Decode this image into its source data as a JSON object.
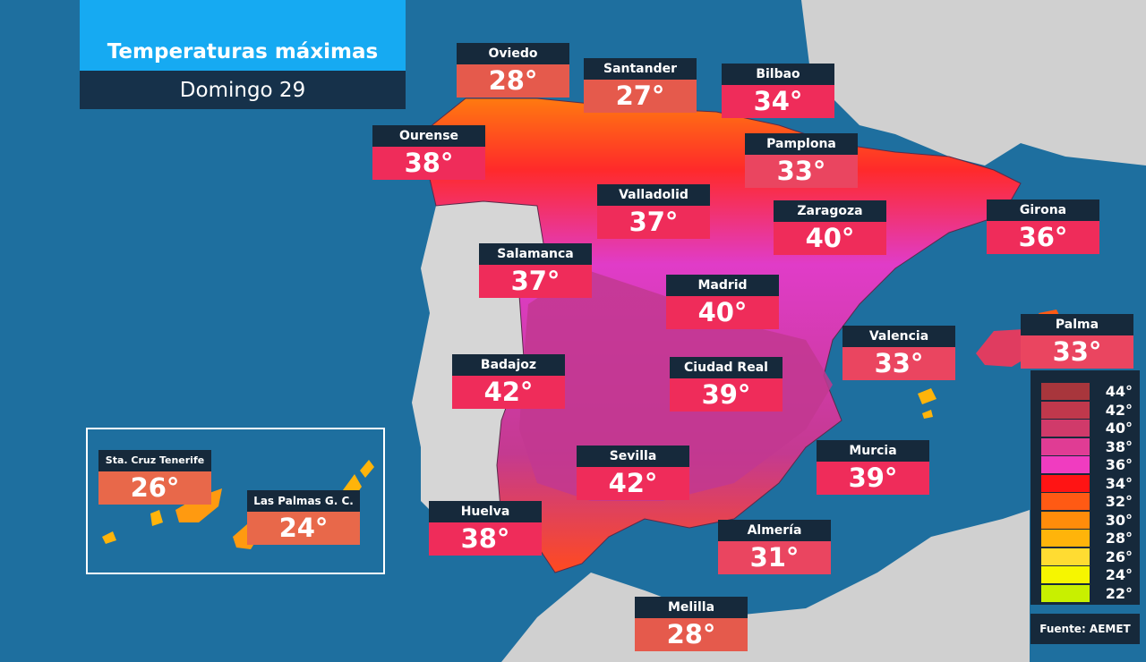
{
  "header": {
    "title": "Temperaturas máximas",
    "subtitle": "Domingo 29"
  },
  "cities": [
    {
      "id": "oviedo",
      "name": "Oviedo",
      "temp": "28°",
      "color": "#e55a4c"
    },
    {
      "id": "santander",
      "name": "Santander",
      "temp": "27°",
      "color": "#e55a4c"
    },
    {
      "id": "bilbao",
      "name": "Bilbao",
      "temp": "34°",
      "color": "#ef2c5a"
    },
    {
      "id": "ourense",
      "name": "Ourense",
      "temp": "38°",
      "color": "#ef2c5a"
    },
    {
      "id": "pamplona",
      "name": "Pamplona",
      "temp": "33°",
      "color": "#ea4560"
    },
    {
      "id": "valladolid",
      "name": "Valladolid",
      "temp": "37°",
      "color": "#ef2c5a"
    },
    {
      "id": "zaragoza",
      "name": "Zaragoza",
      "temp": "40°",
      "color": "#ef2c5a"
    },
    {
      "id": "girona",
      "name": "Girona",
      "temp": "36°",
      "color": "#ef2c5a"
    },
    {
      "id": "salamanca",
      "name": "Salamanca",
      "temp": "37°",
      "color": "#ef2c5a"
    },
    {
      "id": "madrid",
      "name": "Madrid",
      "temp": "40°",
      "color": "#ef2c5a"
    },
    {
      "id": "palma",
      "name": "Palma",
      "temp": "33°",
      "color": "#ea4560"
    },
    {
      "id": "valencia",
      "name": "Valencia",
      "temp": "33°",
      "color": "#ea4560"
    },
    {
      "id": "badajoz",
      "name": "Badajoz",
      "temp": "42°",
      "color": "#ef2c5a"
    },
    {
      "id": "ciudad-real",
      "name": "Ciudad Real",
      "temp": "39°",
      "color": "#ef2c5a"
    },
    {
      "id": "sevilla",
      "name": "Sevilla",
      "temp": "42°",
      "color": "#ef2c5a"
    },
    {
      "id": "murcia",
      "name": "Murcia",
      "temp": "39°",
      "color": "#ef2c5a"
    },
    {
      "id": "sta-cruz-tenerife",
      "name": "Sta. Cruz Tenerife",
      "temp": "26°",
      "color": "#e8684a"
    },
    {
      "id": "las-palmas",
      "name": "Las Palmas G. C.",
      "temp": "24°",
      "color": "#e8684a"
    },
    {
      "id": "huelva",
      "name": "Huelva",
      "temp": "38°",
      "color": "#ef2c5a"
    },
    {
      "id": "almeria",
      "name": "Almería",
      "temp": "31°",
      "color": "#ea4560"
    },
    {
      "id": "melilla",
      "name": "Melilla",
      "temp": "28°",
      "color": "#e55a4c"
    }
  ],
  "legend": {
    "entries": [
      {
        "label": "44°",
        "color": "#a8363c"
      },
      {
        "label": "42°",
        "color": "#c0384c"
      },
      {
        "label": "40°",
        "color": "#d03a6a"
      },
      {
        "label": "38°",
        "color": "#e03c94"
      },
      {
        "label": "36°",
        "color": "#f03cc0"
      },
      {
        "label": "34°",
        "color": "#ff1414"
      },
      {
        "label": "32°",
        "color": "#ff5a14"
      },
      {
        "label": "30°",
        "color": "#ff8c0a"
      },
      {
        "label": "28°",
        "color": "#ffb40a"
      },
      {
        "label": "26°",
        "color": "#ffdc32"
      },
      {
        "label": "24°",
        "color": "#f6f600"
      },
      {
        "label": "22°",
        "color": "#c8f000"
      }
    ]
  },
  "source": "Fuente: AEMET",
  "colors": {
    "sea": "#1e6f9f",
    "land": "#d4d4d4",
    "label_bg": "#16293b",
    "title_bg": "#16aaf2"
  }
}
